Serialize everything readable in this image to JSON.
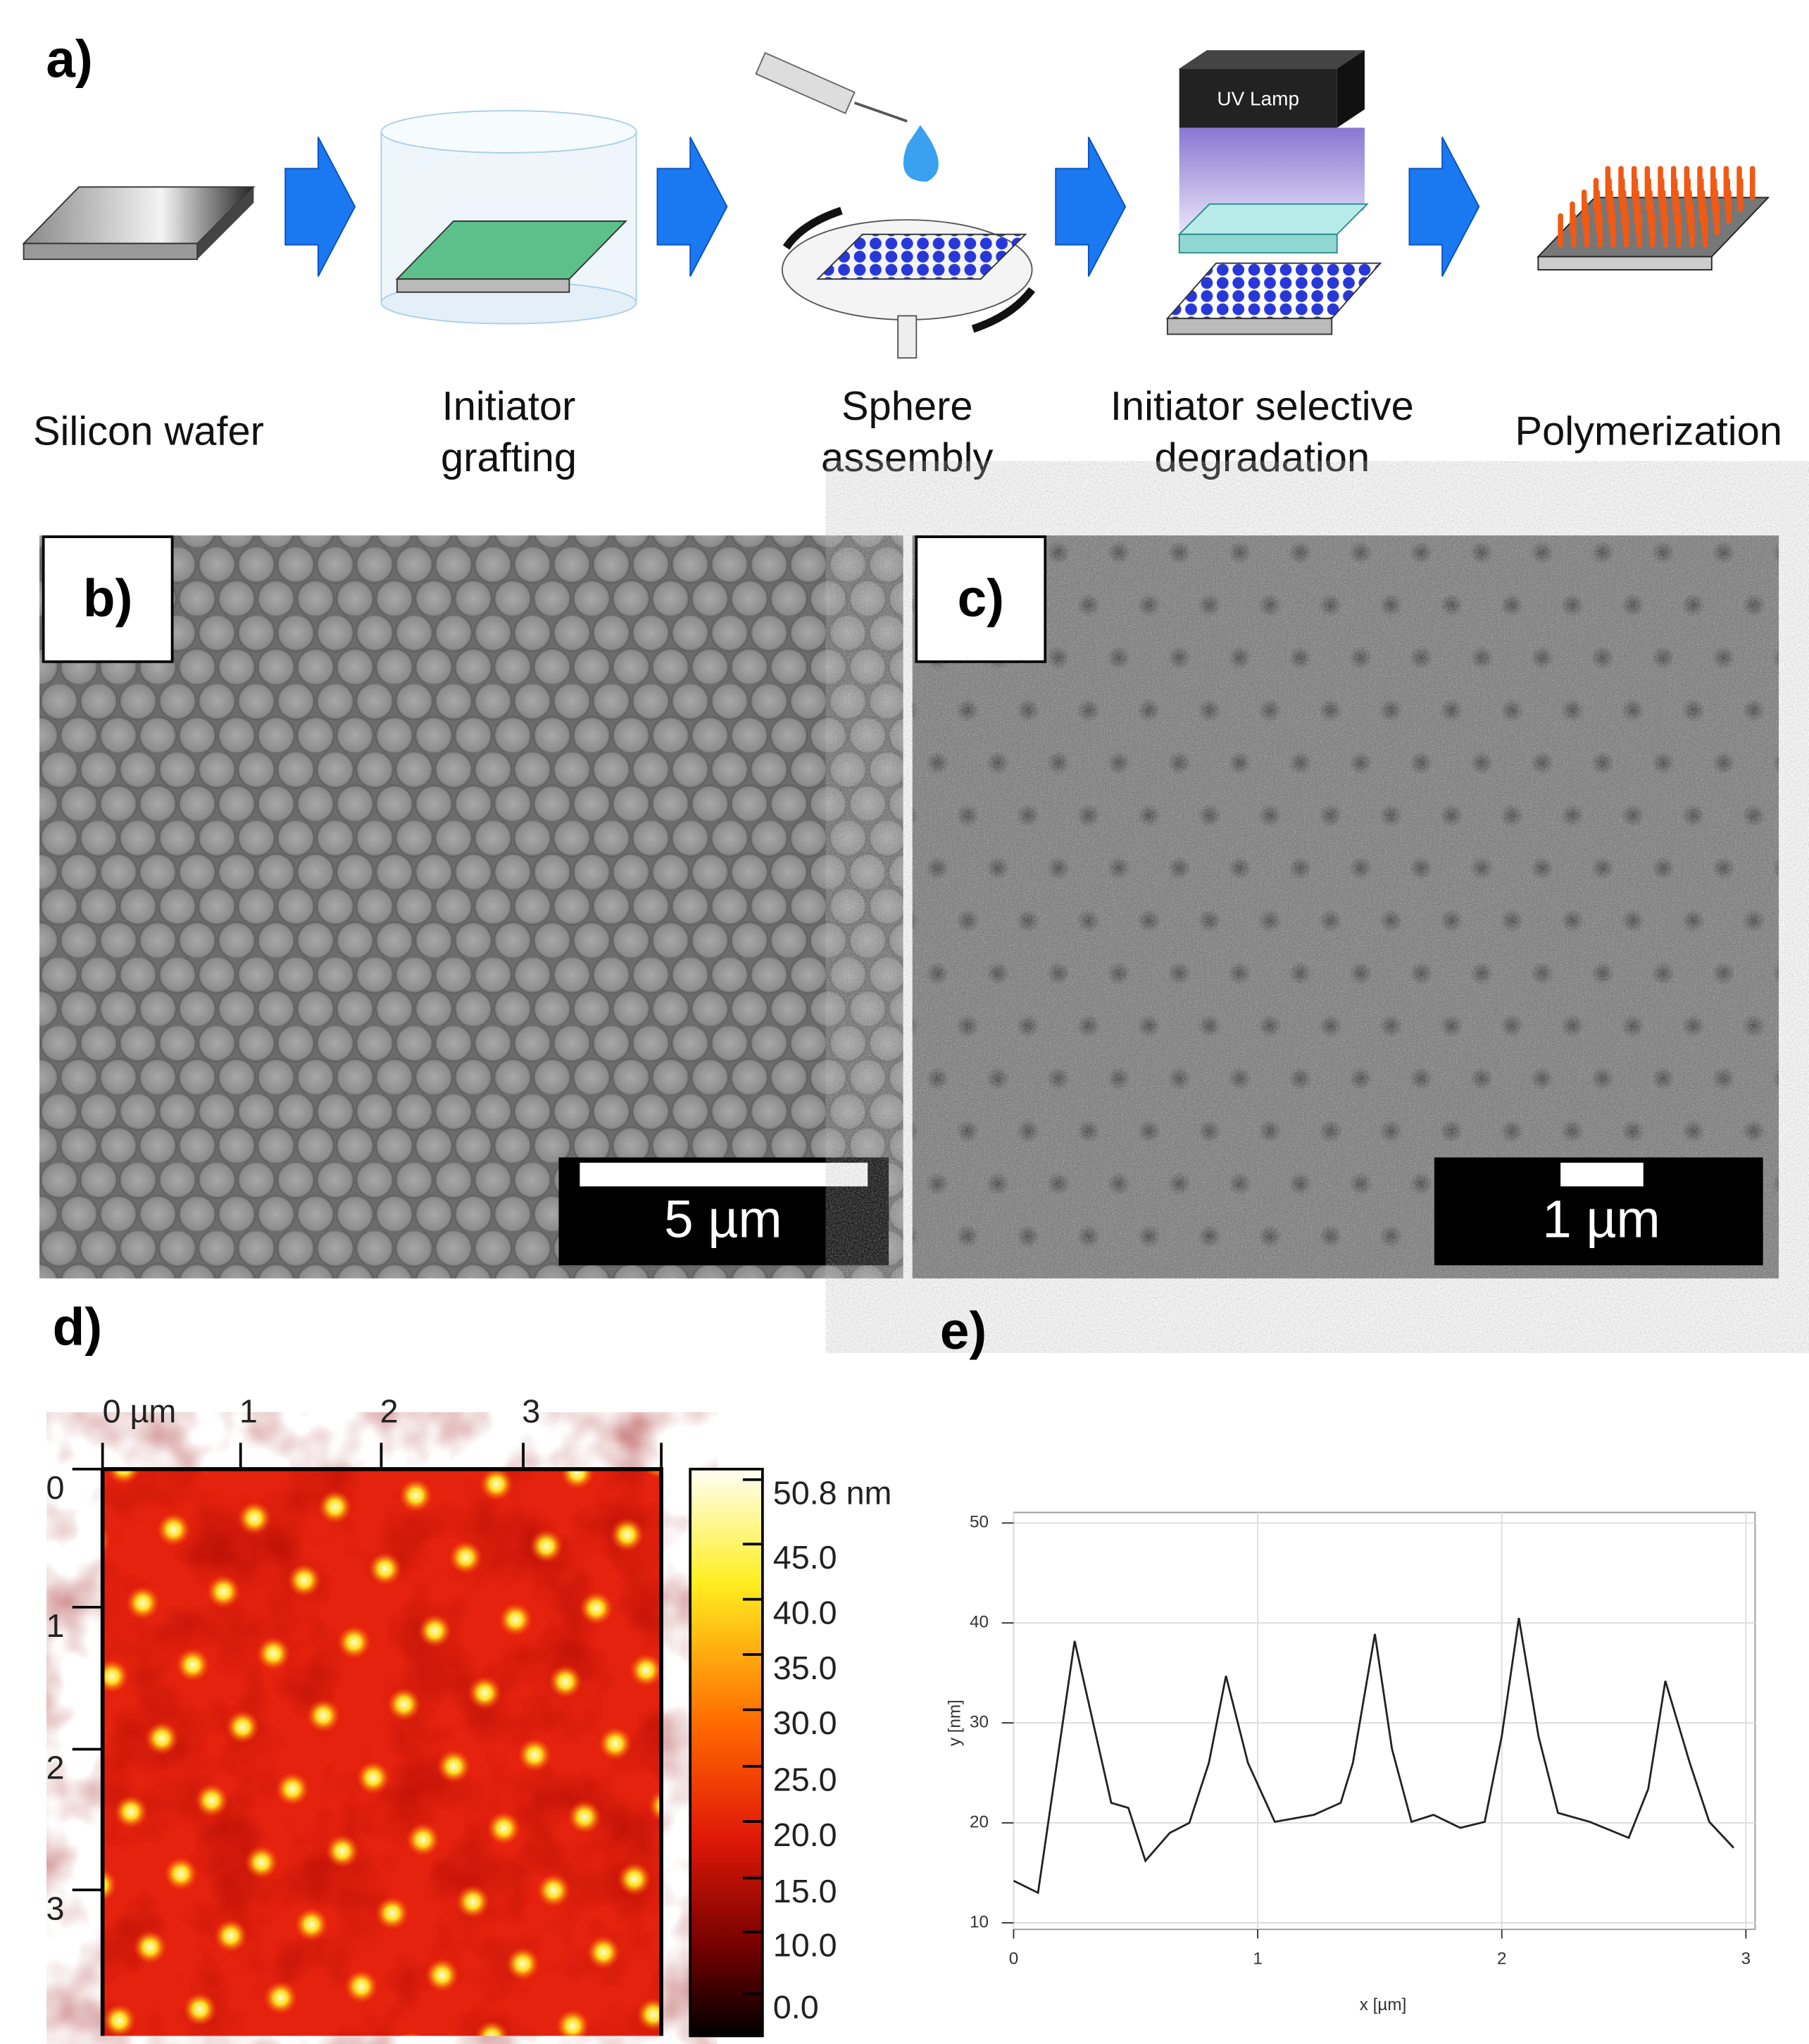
{
  "figure": {
    "a": {
      "label": "a)",
      "lamp": "UV Lamp",
      "steps": [
        [
          "Silicon wafer"
        ],
        [
          "Initiator",
          "grafting"
        ],
        [
          "Sphere",
          "assembly"
        ],
        [
          "Initiator selective",
          "degradation"
        ],
        [
          "Polymerization"
        ]
      ]
    },
    "b": {
      "label": "b)",
      "scale_bar": "5 µm"
    },
    "c": {
      "label": "c)",
      "scale_bar": "1 µm"
    },
    "d": {
      "label": "d)",
      "x_ticks": [
        "0 µm",
        "1",
        "2",
        "3"
      ],
      "y_ticks": [
        "0",
        "1",
        "2",
        "3"
      ],
      "colorbar_ticks": [
        "50.8 nm",
        "45.0",
        "40.0",
        "35.0",
        "30.0",
        "25.0",
        "20.0",
        "15.0",
        "10.0",
        "0.0"
      ]
    },
    "e": {
      "label": "e)"
    }
  },
  "chart_data": {
    "type": "line",
    "xlabel": "x [µm]",
    "ylabel": "y [nm]",
    "color": "#222222",
    "grid": true,
    "x": [
      0,
      0.1,
      0.25,
      0.4,
      0.47,
      0.54,
      0.64,
      0.72,
      0.8,
      0.87,
      0.96,
      1.07,
      1.23,
      1.34,
      1.39,
      1.48,
      1.55,
      1.63,
      1.72,
      1.83,
      1.93,
      2.0,
      2.07,
      2.15,
      2.23,
      2.36,
      2.52,
      2.6,
      2.67,
      2.77,
      2.85,
      2.95
    ],
    "y": [
      14.2,
      13,
      38.2,
      22,
      21.5,
      16.2,
      19,
      20,
      26,
      34.7,
      26,
      20.1,
      20.8,
      22,
      26,
      38.9,
      27.4,
      20.1,
      20.8,
      19.5,
      20.1,
      28.7,
      40.5,
      28.7,
      21,
      20.1,
      18.5,
      23.4,
      34.2,
      26,
      20.1,
      17.5
    ],
    "xlim": [
      0,
      3
    ],
    "ylim": [
      10,
      50
    ],
    "xticks": [
      0,
      1,
      2,
      3
    ],
    "yticks": [
      10,
      20,
      30,
      40,
      50
    ]
  }
}
